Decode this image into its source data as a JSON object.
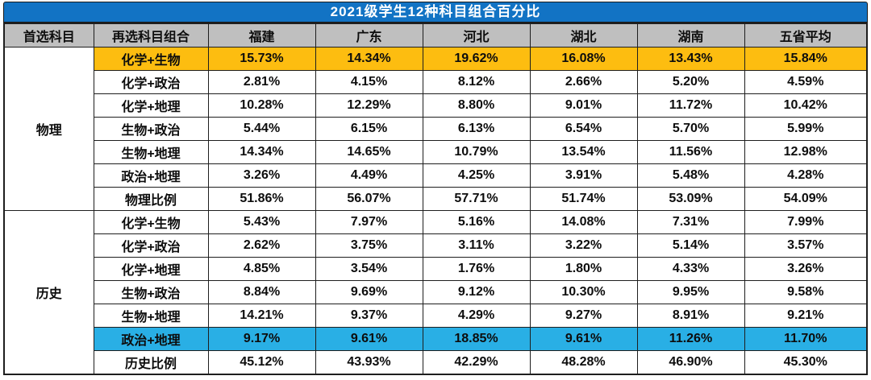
{
  "title": "2021级学生12种科目组合百分比",
  "colors": {
    "title_bar": "#1273C4",
    "header_bg": "#BFBFBF",
    "highlight_orange": "#FDBD10",
    "highlight_cyan": "#29AFE5",
    "border": "#1E1E1E",
    "title_text": "#FFFFFF"
  },
  "chart_data": {
    "type": "table",
    "title": "2021级学生12种科目组合百分比",
    "columns": [
      "首选科目",
      "再选科目组合",
      "福建",
      "广东",
      "河北",
      "湖北",
      "湖南",
      "五省平均"
    ],
    "sections": [
      {
        "first_subject": "物理",
        "rows": [
          {
            "combo": "化学+生物",
            "values": [
              "15.73%",
              "14.34%",
              "19.62%",
              "16.08%",
              "13.43%",
              "15.84%"
            ],
            "highlight": "orange"
          },
          {
            "combo": "化学+政治",
            "values": [
              "2.81%",
              "4.15%",
              "8.12%",
              "2.66%",
              "5.20%",
              "4.59%"
            ],
            "highlight": ""
          },
          {
            "combo": "化学+地理",
            "values": [
              "10.28%",
              "12.29%",
              "8.80%",
              "9.01%",
              "11.72%",
              "10.42%"
            ],
            "highlight": ""
          },
          {
            "combo": "生物+政治",
            "values": [
              "5.44%",
              "6.15%",
              "6.13%",
              "6.54%",
              "5.70%",
              "5.99%"
            ],
            "highlight": ""
          },
          {
            "combo": "生物+地理",
            "values": [
              "14.34%",
              "14.65%",
              "10.79%",
              "13.54%",
              "11.56%",
              "12.98%"
            ],
            "highlight": ""
          },
          {
            "combo": "政治+地理",
            "values": [
              "3.26%",
              "4.49%",
              "4.25%",
              "3.91%",
              "5.48%",
              "4.28%"
            ],
            "highlight": ""
          },
          {
            "combo": "物理比例",
            "values": [
              "51.86%",
              "56.07%",
              "57.71%",
              "51.74%",
              "53.09%",
              "54.09%"
            ],
            "highlight": "",
            "is_total": true
          }
        ]
      },
      {
        "first_subject": "历史",
        "rows": [
          {
            "combo": "化学+生物",
            "values": [
              "5.43%",
              "7.97%",
              "5.16%",
              "14.08%",
              "7.31%",
              "7.99%"
            ],
            "highlight": ""
          },
          {
            "combo": "化学+政治",
            "values": [
              "2.62%",
              "3.75%",
              "3.11%",
              "3.22%",
              "5.14%",
              "3.57%"
            ],
            "highlight": ""
          },
          {
            "combo": "化学+地理",
            "values": [
              "4.85%",
              "3.54%",
              "1.76%",
              "1.80%",
              "4.33%",
              "3.26%"
            ],
            "highlight": ""
          },
          {
            "combo": "生物+政治",
            "values": [
              "8.84%",
              "9.69%",
              "9.12%",
              "10.30%",
              "9.95%",
              "9.58%"
            ],
            "highlight": ""
          },
          {
            "combo": "生物+地理",
            "values": [
              "14.21%",
              "9.37%",
              "4.29%",
              "9.27%",
              "8.91%",
              "9.21%"
            ],
            "highlight": ""
          },
          {
            "combo": "政治+地理",
            "values": [
              "9.17%",
              "9.61%",
              "18.85%",
              "9.61%",
              "11.26%",
              "11.70%"
            ],
            "highlight": "cyan"
          },
          {
            "combo": "历史比例",
            "values": [
              "45.12%",
              "43.93%",
              "42.29%",
              "48.28%",
              "46.90%",
              "45.30%"
            ],
            "highlight": "",
            "is_total": true
          }
        ]
      }
    ]
  }
}
